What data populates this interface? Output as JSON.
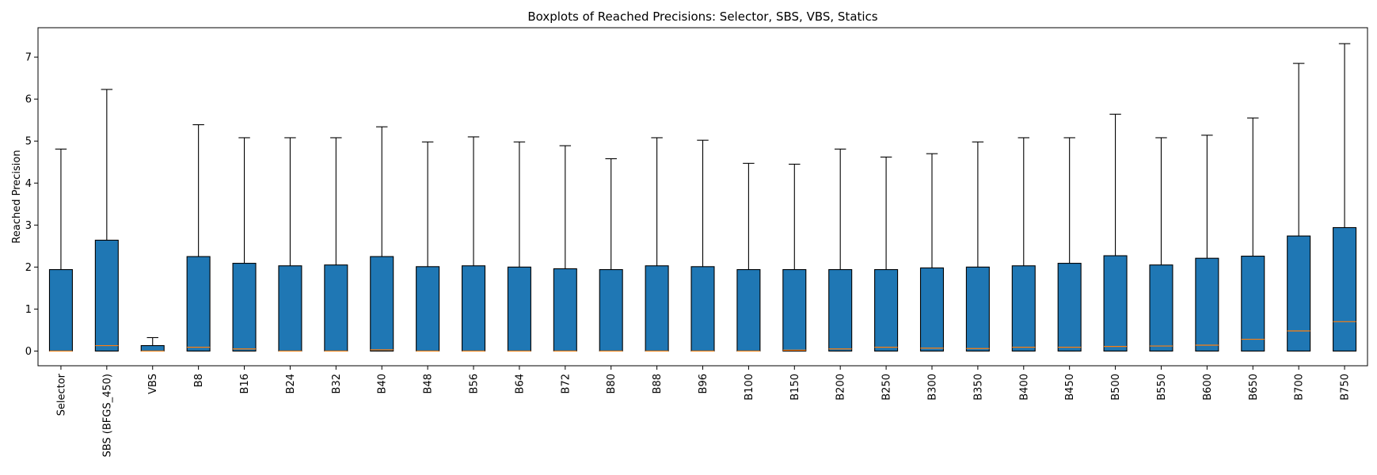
{
  "chart_data": {
    "type": "boxplot",
    "title": "Boxplots of Reached Precisions: Selector, SBS, VBS, Statics",
    "xlabel": "",
    "ylabel": "Reached Precision",
    "ylim": [
      -0.35,
      7.7
    ],
    "yticks": [
      0,
      1,
      2,
      3,
      4,
      5,
      6,
      7
    ],
    "grid": false,
    "colors": {
      "box": "#1f77b4",
      "median": "#ff7f0e",
      "line": "#000000"
    },
    "categories": [
      "Selector",
      "SBS (BFGS_450)",
      "VBS",
      "B8",
      "B16",
      "B24",
      "B32",
      "B40",
      "B48",
      "B56",
      "B64",
      "B72",
      "B80",
      "B88",
      "B96",
      "B100",
      "B150",
      "B200",
      "B250",
      "B300",
      "B350",
      "B400",
      "B450",
      "B500",
      "B550",
      "B600",
      "B650",
      "B700",
      "B750"
    ],
    "boxes": [
      {
        "whislo": 0,
        "q1": 0,
        "med": 0.0,
        "q3": 1.94,
        "whishi": 4.81
      },
      {
        "whislo": 0,
        "q1": 0,
        "med": 0.13,
        "q3": 2.64,
        "whishi": 6.23
      },
      {
        "whislo": 0,
        "q1": 0,
        "med": 0.0,
        "q3": 0.13,
        "whishi": 0.32
      },
      {
        "whislo": 0,
        "q1": 0,
        "med": 0.09,
        "q3": 2.25,
        "whishi": 5.39
      },
      {
        "whislo": 0,
        "q1": 0,
        "med": 0.05,
        "q3": 2.09,
        "whishi": 5.08
      },
      {
        "whislo": 0,
        "q1": 0,
        "med": 0.0,
        "q3": 2.03,
        "whishi": 5.08
      },
      {
        "whislo": 0,
        "q1": 0,
        "med": 0.0,
        "q3": 2.05,
        "whishi": 5.08
      },
      {
        "whislo": 0,
        "q1": 0,
        "med": 0.03,
        "q3": 2.25,
        "whishi": 5.34
      },
      {
        "whislo": 0,
        "q1": 0,
        "med": 0.0,
        "q3": 2.01,
        "whishi": 4.98
      },
      {
        "whislo": 0,
        "q1": 0,
        "med": 0.0,
        "q3": 2.03,
        "whishi": 5.1
      },
      {
        "whislo": 0,
        "q1": 0,
        "med": 0.0,
        "q3": 2.0,
        "whishi": 4.98
      },
      {
        "whislo": 0,
        "q1": 0,
        "med": 0.0,
        "q3": 1.96,
        "whishi": 4.89
      },
      {
        "whislo": 0,
        "q1": 0,
        "med": 0.0,
        "q3": 1.94,
        "whishi": 4.58
      },
      {
        "whislo": 0,
        "q1": 0,
        "med": 0.0,
        "q3": 2.03,
        "whishi": 5.08
      },
      {
        "whislo": 0,
        "q1": 0,
        "med": 0.0,
        "q3": 2.01,
        "whishi": 5.02
      },
      {
        "whislo": 0,
        "q1": 0,
        "med": 0.0,
        "q3": 1.94,
        "whishi": 4.47
      },
      {
        "whislo": 0,
        "q1": 0,
        "med": 0.02,
        "q3": 1.94,
        "whishi": 4.45
      },
      {
        "whislo": 0,
        "q1": 0,
        "med": 0.05,
        "q3": 1.94,
        "whishi": 4.81
      },
      {
        "whislo": 0,
        "q1": 0,
        "med": 0.09,
        "q3": 1.94,
        "whishi": 4.62
      },
      {
        "whislo": 0,
        "q1": 0,
        "med": 0.07,
        "q3": 1.98,
        "whishi": 4.7
      },
      {
        "whislo": 0,
        "q1": 0,
        "med": 0.06,
        "q3": 2.0,
        "whishi": 4.98
      },
      {
        "whislo": 0,
        "q1": 0,
        "med": 0.09,
        "q3": 2.03,
        "whishi": 5.08
      },
      {
        "whislo": 0,
        "q1": 0,
        "med": 0.09,
        "q3": 2.09,
        "whishi": 5.08
      },
      {
        "whislo": 0,
        "q1": 0,
        "med": 0.11,
        "q3": 2.27,
        "whishi": 5.64
      },
      {
        "whislo": 0,
        "q1": 0,
        "med": 0.12,
        "q3": 2.05,
        "whishi": 5.08
      },
      {
        "whislo": 0,
        "q1": 0,
        "med": 0.14,
        "q3": 2.21,
        "whishi": 5.14
      },
      {
        "whislo": 0,
        "q1": 0,
        "med": 0.28,
        "q3": 2.26,
        "whishi": 5.55
      },
      {
        "whislo": 0,
        "q1": 0,
        "med": 0.48,
        "q3": 2.74,
        "whishi": 6.85
      },
      {
        "whislo": 0,
        "q1": 0,
        "med": 0.7,
        "q3": 2.94,
        "whishi": 7.32
      }
    ]
  }
}
